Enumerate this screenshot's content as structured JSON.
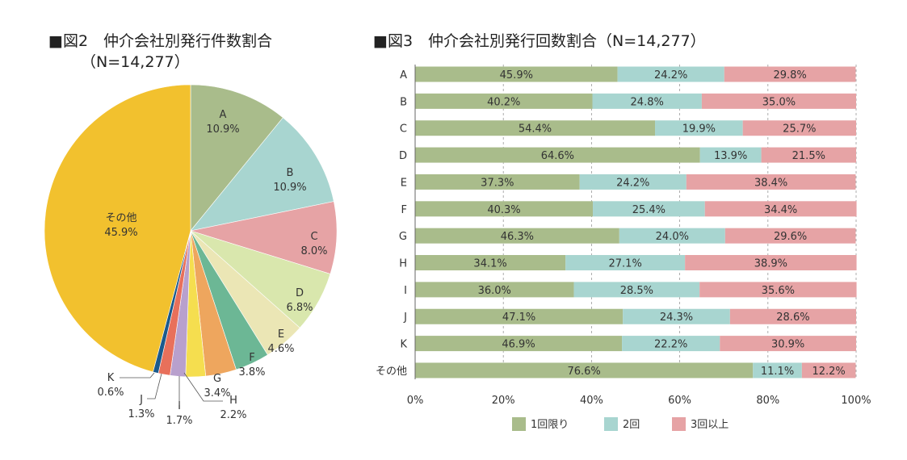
{
  "chart_data": [
    {
      "type": "pie",
      "title": "■図2　仲介会社別発行件数割合",
      "subtitle": "（N=14,277）",
      "start": "12 o'clock, clockwise",
      "slices": [
        {
          "label": "A",
          "value": 10.9,
          "text": "10.9%",
          "color": "#a9bc8b"
        },
        {
          "label": "B",
          "value": 10.9,
          "text": "10.9%",
          "color": "#a8d5d0"
        },
        {
          "label": "C",
          "value": 8.0,
          "text": "8.0%",
          "color": "#e6a3a5"
        },
        {
          "label": "D",
          "value": 6.8,
          "text": "6.8%",
          "color": "#d9e7ad"
        },
        {
          "label": "E",
          "value": 4.6,
          "text": "4.6%",
          "color": "#ebe6b5"
        },
        {
          "label": "F",
          "value": 3.8,
          "text": "3.8%",
          "color": "#6cb795"
        },
        {
          "label": "G",
          "value": 3.4,
          "text": "3.4%",
          "color": "#eea65e"
        },
        {
          "label": "H",
          "value": 2.2,
          "text": "2.2%",
          "color": "#f5de4f"
        },
        {
          "label": "I",
          "value": 1.7,
          "text": "1.7%",
          "color": "#b8a0cd"
        },
        {
          "label": "J",
          "value": 1.3,
          "text": "1.3%",
          "color": "#e8705b"
        },
        {
          "label": "K",
          "value": 0.6,
          "text": "0.6%",
          "color": "#1b5a8c"
        },
        {
          "label": "その他",
          "value": 45.9,
          "text": "45.9%",
          "color": "#f2c12e"
        }
      ]
    },
    {
      "type": "bar",
      "stacked": true,
      "orientation": "horizontal",
      "title": "■図3　仲介会社別発行回数割合（N=14,277）",
      "categories": [
        "A",
        "B",
        "C",
        "D",
        "E",
        "F",
        "G",
        "H",
        "I",
        "J",
        "K",
        "その他"
      ],
      "series": [
        {
          "name": "1回限り",
          "color": "#a9bc8b",
          "values": [
            45.9,
            40.2,
            54.4,
            64.6,
            37.3,
            40.3,
            46.3,
            34.1,
            36.0,
            47.1,
            46.9,
            76.6
          ]
        },
        {
          "name": "2回",
          "color": "#a8d5d0",
          "values": [
            24.2,
            24.8,
            19.9,
            13.9,
            24.2,
            25.4,
            24.0,
            27.1,
            28.5,
            24.3,
            22.2,
            11.1
          ]
        },
        {
          "name": "3回以上",
          "color": "#e6a3a5",
          "values": [
            29.8,
            35.0,
            25.7,
            21.5,
            38.4,
            34.4,
            29.6,
            38.9,
            35.6,
            28.6,
            30.9,
            12.2
          ]
        }
      ],
      "xticks": [
        "0%",
        "20%",
        "40%",
        "60%",
        "80%",
        "100%"
      ],
      "xlim": [
        0,
        100
      ],
      "grid": "dashed vertical",
      "legend": "bottom"
    }
  ]
}
